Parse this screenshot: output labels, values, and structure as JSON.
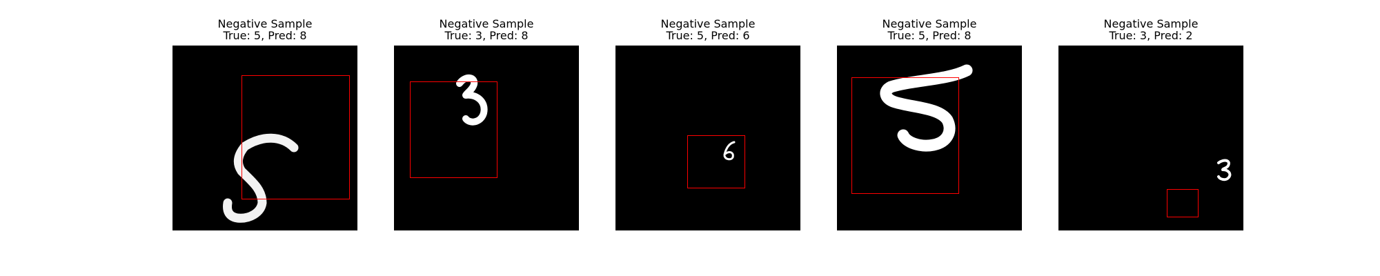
{
  "colors": {
    "background": "#ffffff",
    "image_background": "#000000",
    "digit_stroke": "#ffffff",
    "box_stroke": "#ff0000"
  },
  "panels": [
    {
      "heading": "Negative Sample",
      "labels": "True: 5, Pred: 8",
      "true_digit": 5,
      "predicted_digit": 8
    },
    {
      "heading": "Negative Sample",
      "labels": "True: 3, Pred: 8",
      "true_digit": 3,
      "predicted_digit": 8
    },
    {
      "heading": "Negative Sample",
      "labels": "True: 5, Pred: 6",
      "true_digit": 5,
      "predicted_digit": 6
    },
    {
      "heading": "Negative Sample",
      "labels": "True: 5, Pred: 8",
      "true_digit": 5,
      "predicted_digit": 8
    },
    {
      "heading": "Negative Sample",
      "labels": "True: 3, Pred: 2",
      "true_digit": 3,
      "predicted_digit": 2
    }
  ]
}
